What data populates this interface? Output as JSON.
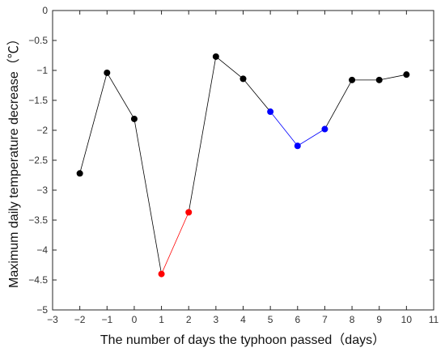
{
  "chart_data": {
    "type": "line",
    "title": "",
    "xlabel": "The number of days the typhoon passed（days）",
    "ylabel": "Maximum daily temperature decrease（℃）",
    "xlim": [
      -3,
      11
    ],
    "ylim": [
      -5,
      0
    ],
    "xticks": [
      -3,
      -2,
      -1,
      0,
      1,
      2,
      3,
      4,
      5,
      6,
      7,
      8,
      9,
      10,
      11
    ],
    "yticks": [
      0,
      -0.5,
      -1,
      -1.5,
      -2,
      -2.5,
      -3,
      -3.5,
      -4,
      -4.5,
      -5
    ],
    "grid": false,
    "legend": "none",
    "x": [
      -2,
      -1,
      0,
      1,
      2,
      3,
      4,
      5,
      6,
      7,
      8,
      9,
      10
    ],
    "y": [
      -2.72,
      -1.04,
      -1.81,
      -4.4,
      -3.37,
      -0.77,
      -1.14,
      -1.69,
      -2.26,
      -1.98,
      -1.16,
      -1.16,
      -1.07
    ],
    "segment_colors": [
      "#000000",
      "#000000",
      "#000000",
      "#ff0000",
      "#000000",
      "#000000",
      "#000000",
      "#0000ff",
      "#0000ff",
      "#000000",
      "#000000",
      "#000000"
    ],
    "point_colors": [
      "#000000",
      "#000000",
      "#000000",
      "#ff0000",
      "#ff0000",
      "#000000",
      "#000000",
      "#0000ff",
      "#0000ff",
      "#0000ff",
      "#000000",
      "#000000",
      "#000000"
    ]
  }
}
